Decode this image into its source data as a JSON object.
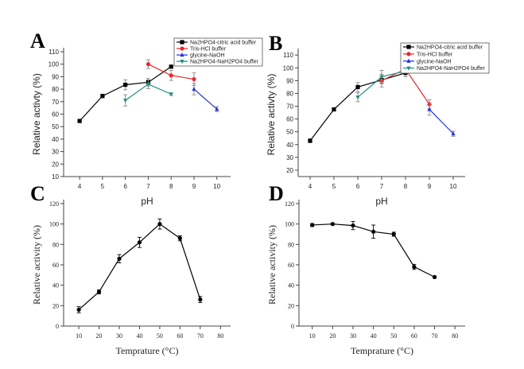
{
  "chart_data": [
    {
      "panel": "A",
      "type": "line",
      "xlabel": "pH",
      "ylabel": "Relative activty (%)",
      "xlim": [
        3.3,
        10.6
      ],
      "ylim": [
        10,
        110
      ],
      "xticks": [
        4,
        5,
        6,
        7,
        8,
        9,
        10
      ],
      "yticks": [
        10,
        20,
        30,
        40,
        50,
        60,
        70,
        80,
        90,
        100,
        110
      ],
      "legend": "top-right",
      "series": [
        {
          "name": "Na2HPO4-citric acid buffer",
          "color": "#000000",
          "marker": "square",
          "x": [
            4,
            5,
            6,
            7,
            8
          ],
          "y": [
            54.5,
            74.5,
            83.5,
            85.5,
            98
          ],
          "err": [
            1,
            1.5,
            4,
            3,
            1
          ]
        },
        {
          "name": "Tris-HCl buffer",
          "color": "#e8262a",
          "marker": "circle",
          "x": [
            7,
            8,
            9
          ],
          "y": [
            100,
            91,
            88
          ],
          "err": [
            3.5,
            4,
            5
          ]
        },
        {
          "name": "glycine-NaOH",
          "color": "#2233dd",
          "marker": "triangle-up",
          "x": [
            9,
            10
          ],
          "y": [
            80,
            64
          ],
          "err": [
            4.5,
            2
          ]
        },
        {
          "name": "Na2HPO4-NaH2PO4 buffer",
          "color": "#1f8f80",
          "marker": "triangle-down",
          "x": [
            6,
            7,
            8
          ],
          "y": [
            71,
            84,
            76
          ],
          "err": [
            4.5,
            3.5,
            1
          ]
        }
      ]
    },
    {
      "panel": "B",
      "type": "line",
      "xlabel": "pH",
      "ylabel": "Relative activty (%)",
      "xlim": [
        3.5,
        10.5
      ],
      "ylim": [
        15,
        112
      ],
      "xticks": [
        4,
        5,
        6,
        7,
        8,
        9,
        10
      ],
      "yticks": [
        20,
        30,
        40,
        50,
        60,
        70,
        80,
        90,
        100,
        110
      ],
      "legend": "top-right",
      "series": [
        {
          "name": "Na2HPO4-citric acid buffer",
          "color": "#000000",
          "marker": "square",
          "x": [
            4,
            5,
            6,
            7,
            8
          ],
          "y": [
            43,
            67.5,
            85,
            90.5,
            96
          ],
          "err": [
            1.5,
            1,
            3.5,
            3,
            3
          ]
        },
        {
          "name": "Tris-HCl buffer",
          "color": "#e8262a",
          "marker": "circle",
          "x": [
            7,
            8,
            9
          ],
          "y": [
            90,
            99,
            71.5
          ],
          "err": [
            5,
            2,
            3.5
          ]
        },
        {
          "name": "glycine-NaOH",
          "color": "#2233dd",
          "marker": "triangle-up",
          "x": [
            9,
            10
          ],
          "y": [
            67.5,
            48.5
          ],
          "err": [
            4.5,
            2
          ]
        },
        {
          "name": "Na2HPO4-NaH2PO4 buffer",
          "color": "#1f8f80",
          "marker": "triangle-down",
          "x": [
            6,
            7,
            8
          ],
          "y": [
            77,
            93,
            97.5
          ],
          "err": [
            3.5,
            5,
            1.5
          ]
        }
      ]
    },
    {
      "panel": "C",
      "type": "line",
      "xlabel": "Temprature (°C)",
      "ylabel": "Relative activity (%)",
      "xlim": [
        2.5,
        85
      ],
      "ylim": [
        0,
        120
      ],
      "xticks": [
        10,
        20,
        30,
        40,
        50,
        60,
        70,
        80
      ],
      "yticks": [
        0,
        20,
        40,
        60,
        80,
        100,
        120
      ],
      "series": [
        {
          "color": "#000000",
          "marker": "circle",
          "x": [
            10,
            20,
            30,
            40,
            50,
            60,
            70
          ],
          "y": [
            16,
            33.5,
            66,
            82,
            100,
            86,
            26
          ],
          "err": [
            3,
            2,
            4,
            5,
            5,
            2.5,
            3
          ]
        }
      ]
    },
    {
      "panel": "D",
      "type": "line",
      "xlabel": "Temprature (°C)",
      "ylabel": "Relative activity (%)",
      "xlim": [
        3.5,
        85
      ],
      "ylim": [
        0,
        120
      ],
      "xticks": [
        10,
        20,
        30,
        40,
        50,
        60,
        70,
        80
      ],
      "yticks": [
        0,
        20,
        40,
        60,
        80,
        100,
        120
      ],
      "series": [
        {
          "color": "#000000",
          "marker": "circle",
          "x": [
            10,
            20,
            30,
            40,
            50,
            60,
            70
          ],
          "y": [
            99,
            100,
            98.5,
            92.5,
            90,
            58,
            48
          ],
          "err": [
            1.5,
            1,
            4,
            6.5,
            2,
            2.5,
            1
          ]
        }
      ]
    }
  ]
}
